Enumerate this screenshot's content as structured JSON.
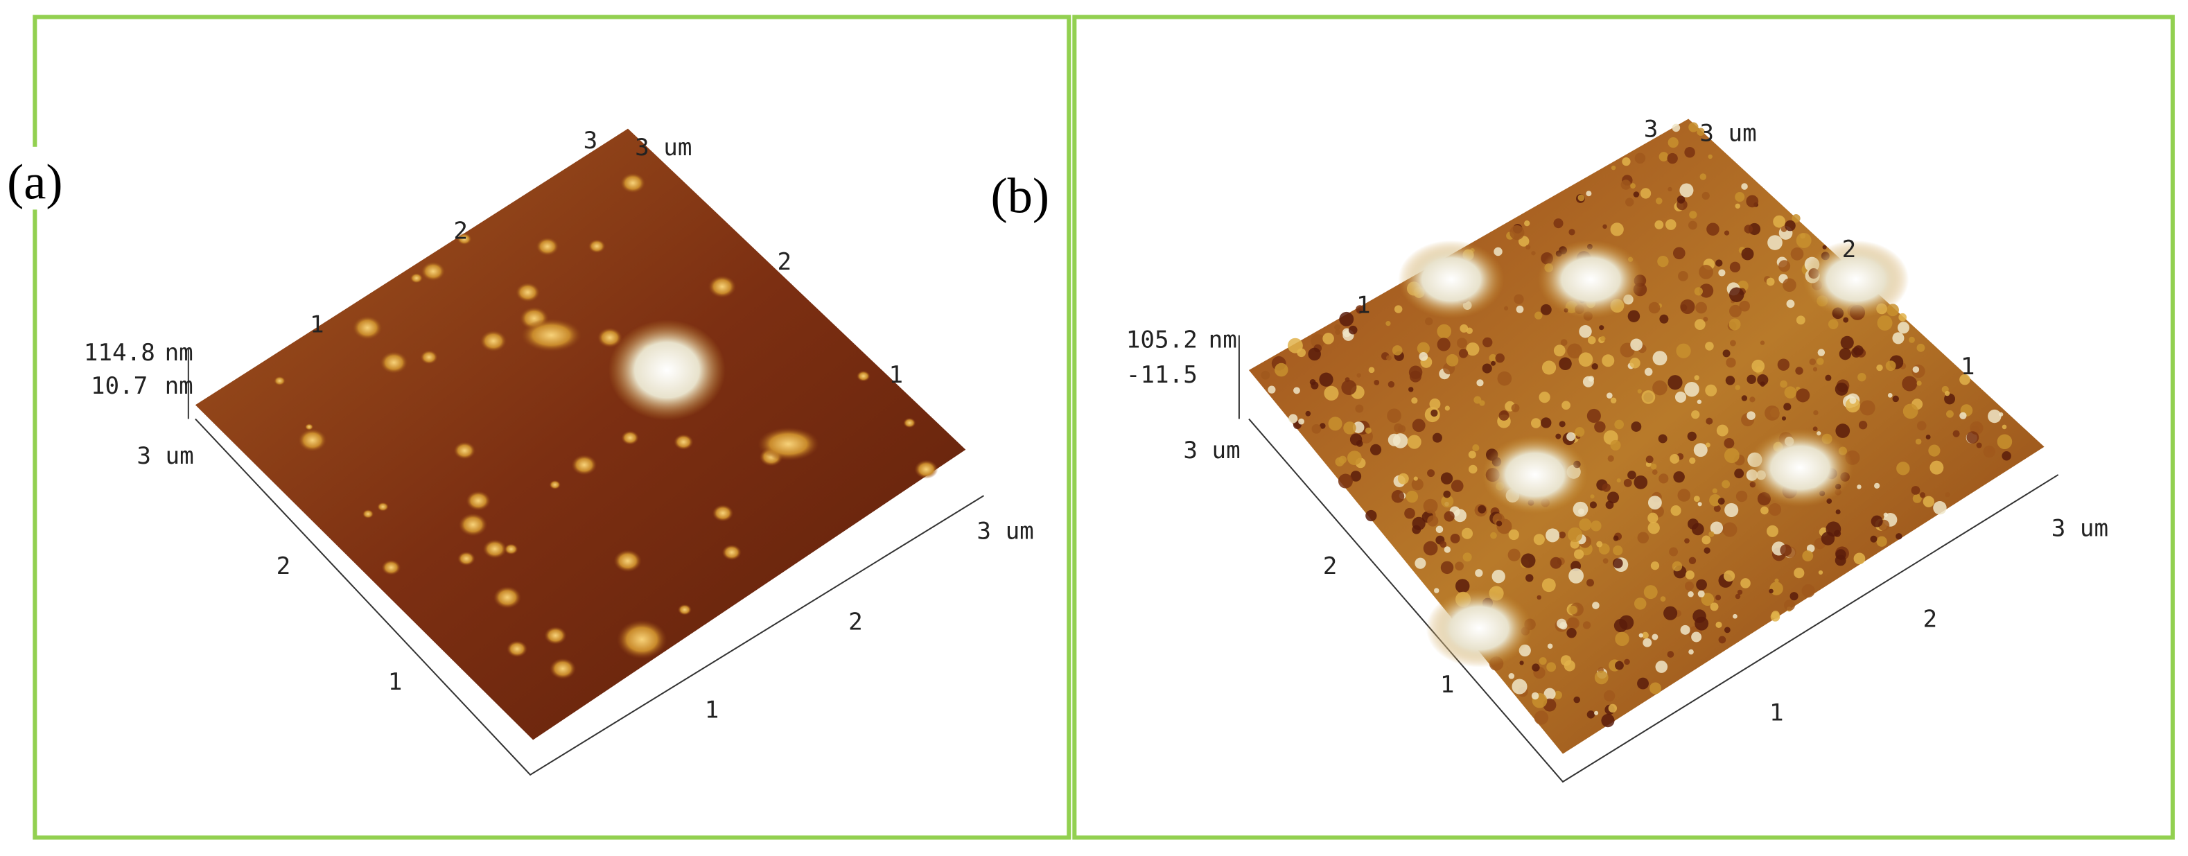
{
  "panels": [
    {
      "label": "(a)",
      "texts": [
        "3",
        "3 um",
        "2",
        "1",
        "2",
        "1",
        "114.8",
        "nm",
        "10.7",
        "nm",
        "3 um",
        "2",
        "1",
        "3 um",
        "2",
        "1"
      ]
    },
    {
      "label": "(b)",
      "texts": [
        "3",
        "3 um",
        "1",
        "2",
        "1",
        "105.2",
        "nm",
        "-11.5",
        "3 um",
        "2",
        "1",
        "3 um",
        "2",
        "1"
      ]
    }
  ]
}
